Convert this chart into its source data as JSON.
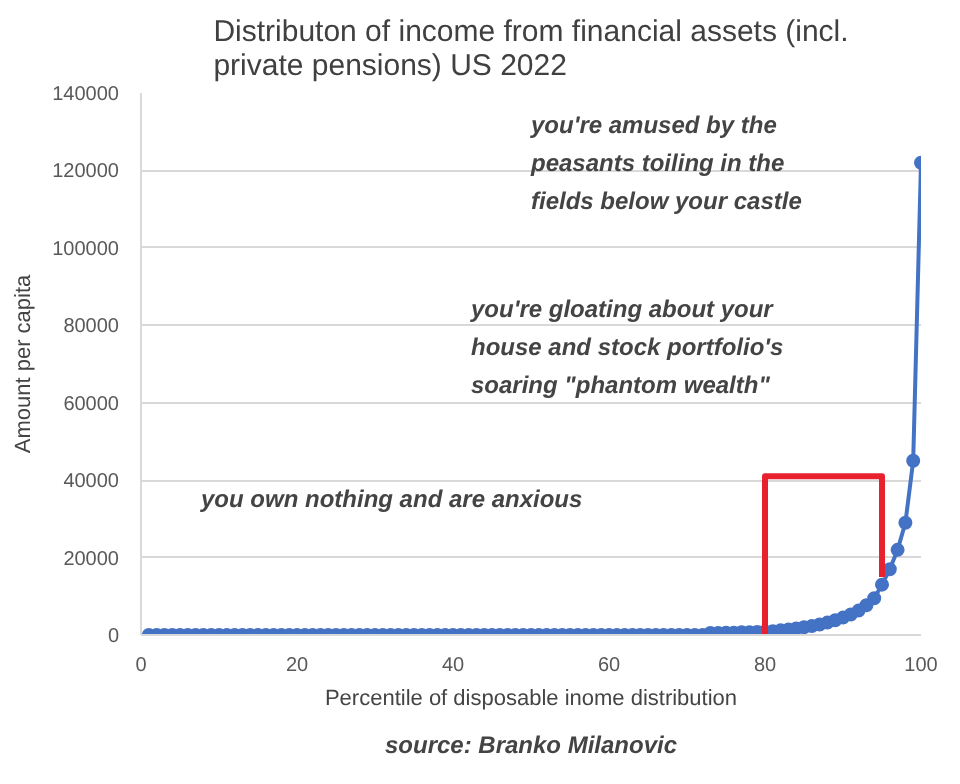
{
  "chart_data": {
    "type": "line",
    "title": "Distributon of income from financial assets (incl.\nprivate pensions) US 2022",
    "xlabel": "Percentile of disposable inome distribution",
    "ylabel": "Amount per capita",
    "xlim": [
      0,
      100
    ],
    "xticks": [
      0,
      20,
      40,
      60,
      80,
      100
    ],
    "ylim": [
      0,
      140000
    ],
    "yticks": [
      0,
      20000,
      40000,
      60000,
      80000,
      100000,
      120000,
      140000
    ],
    "grid": "y",
    "marker": "circle",
    "line_style": "solid",
    "series": [
      {
        "color": "#4472c4",
        "x": [
          1,
          2,
          3,
          4,
          5,
          6,
          7,
          8,
          9,
          10,
          11,
          12,
          13,
          14,
          15,
          16,
          17,
          18,
          19,
          20,
          21,
          22,
          23,
          24,
          25,
          26,
          27,
          28,
          29,
          30,
          31,
          32,
          33,
          34,
          35,
          36,
          37,
          38,
          39,
          40,
          41,
          42,
          43,
          44,
          45,
          46,
          47,
          48,
          49,
          50,
          51,
          52,
          53,
          54,
          55,
          56,
          57,
          58,
          59,
          60,
          61,
          62,
          63,
          64,
          65,
          66,
          67,
          68,
          69,
          70,
          71,
          72,
          73,
          74,
          75,
          76,
          77,
          78,
          79,
          80,
          81,
          82,
          83,
          84,
          85,
          86,
          87,
          88,
          89,
          90,
          91,
          92,
          93,
          94,
          95,
          96,
          97,
          98,
          99,
          100
        ],
        "values": [
          0,
          0,
          0,
          0,
          0,
          0,
          0,
          0,
          0,
          0,
          0,
          0,
          0,
          0,
          0,
          0,
          0,
          0,
          0,
          0,
          0,
          0,
          0,
          0,
          0,
          0,
          0,
          0,
          0,
          0,
          0,
          0,
          0,
          0,
          0,
          0,
          0,
          0,
          0,
          0,
          0,
          0,
          0,
          0,
          0,
          0,
          0,
          0,
          0,
          0,
          0,
          0,
          0,
          0,
          0,
          0,
          0,
          0,
          0,
          0,
          0,
          0,
          0,
          0,
          0,
          0,
          0,
          0,
          0,
          0,
          0,
          0,
          500,
          500,
          600,
          600,
          700,
          700,
          800,
          900,
          1000,
          1200,
          1400,
          1700,
          2000,
          2300,
          2700,
          3200,
          3800,
          4500,
          5300,
          6300,
          7700,
          9500,
          13000,
          17000,
          22000,
          29000,
          45000,
          122000
        ]
      },
      {
        "color": "#e8212e",
        "x": [
          80,
          80,
          95,
          95
        ],
        "values": [
          0,
          41000,
          41000,
          15000
        ],
        "marker": "none"
      }
    ],
    "annotations": [
      "you're amused by the\npeasants toiling in the\nfields below your castle",
      "you're gloating about your\nhouse and stock portfolio's\nsoaring \"phantom wealth\"",
      "you own nothing and are anxious",
      "source: Branko Milanovic"
    ]
  }
}
